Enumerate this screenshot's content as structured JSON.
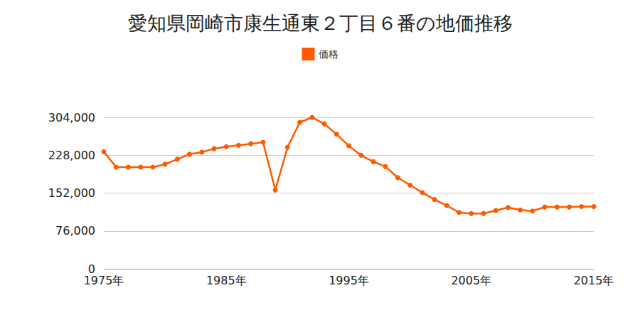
{
  "chart_data": {
    "type": "line",
    "title": "愛知県岡崎市康生通東２丁目６番の地価推移",
    "x": [
      1975,
      1976,
      1977,
      1978,
      1979,
      1980,
      1981,
      1982,
      1983,
      1984,
      1985,
      1986,
      1987,
      1988,
      1989,
      1990,
      1991,
      1992,
      1993,
      1994,
      1995,
      1996,
      1997,
      1998,
      1999,
      2000,
      2001,
      2002,
      2003,
      2004,
      2005,
      2006,
      2007,
      2008,
      2009,
      2010,
      2011,
      2012,
      2013,
      2014,
      2015
    ],
    "series": [
      {
        "name": "価格",
        "color": "#ff5a00",
        "values": [
          235000,
          204000,
          204000,
          204000,
          204000,
          210000,
          220000,
          230000,
          234000,
          241000,
          245000,
          248000,
          251000,
          254000,
          158000,
          244000,
          294000,
          304000,
          291000,
          270000,
          247000,
          228000,
          215000,
          205000,
          183000,
          168000,
          153000,
          139000,
          127000,
          113000,
          111000,
          111000,
          117000,
          123000,
          118000,
          116000,
          124000,
          124000,
          124000,
          125000,
          125000
        ]
      }
    ],
    "xlim": [
      1975,
      2015
    ],
    "xticks": [
      {
        "value": 1975,
        "label": "1975年"
      },
      {
        "value": 1985,
        "label": "1985年"
      },
      {
        "value": 1995,
        "label": "1995年"
      },
      {
        "value": 2005,
        "label": "2005年"
      },
      {
        "value": 2015,
        "label": "2015年"
      }
    ],
    "ylim": [
      0,
      304000
    ],
    "yticks": [
      0,
      {
        "value": 76000,
        "label": "76,000"
      },
      {
        "value": 152000,
        "label": "152,000"
      },
      {
        "value": 228000,
        "label": "228,000"
      },
      {
        "value": 304000,
        "label": "304,000"
      }
    ],
    "grid": true,
    "legend": "top",
    "marker": "circle"
  }
}
